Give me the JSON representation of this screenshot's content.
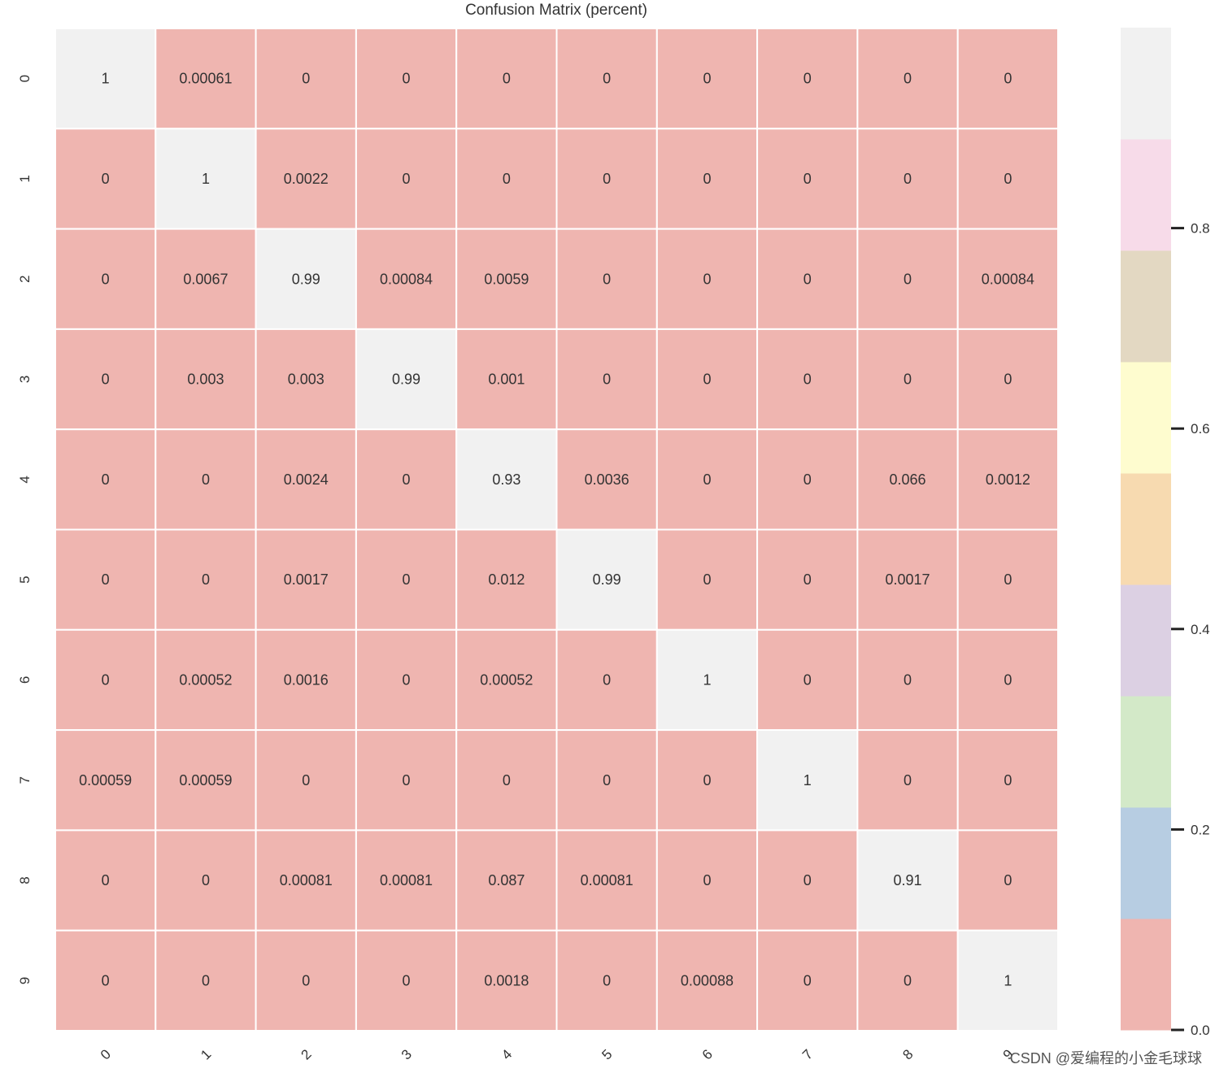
{
  "chart_data": {
    "type": "heatmap",
    "title": "Confusion Matrix (percent)",
    "xlabel": "",
    "ylabel": "",
    "x_tick_labels": [
      "0",
      "1",
      "2",
      "3",
      "4",
      "5",
      "6",
      "7",
      "8",
      "9"
    ],
    "y_tick_labels": [
      "0",
      "1",
      "2",
      "3",
      "4",
      "5",
      "6",
      "7",
      "8",
      "9"
    ],
    "annotations": [
      [
        "1",
        "0.00061",
        "0",
        "0",
        "0",
        "0",
        "0",
        "0",
        "0",
        "0"
      ],
      [
        "0",
        "1",
        "0.0022",
        "0",
        "0",
        "0",
        "0",
        "0",
        "0",
        "0"
      ],
      [
        "0",
        "0.0067",
        "0.99",
        "0.00084",
        "0.0059",
        "0",
        "0",
        "0",
        "0",
        "0.00084"
      ],
      [
        "0",
        "0.003",
        "0.003",
        "0.99",
        "0.001",
        "0",
        "0",
        "0",
        "0",
        "0"
      ],
      [
        "0",
        "0",
        "0.0024",
        "0",
        "0.93",
        "0.0036",
        "0",
        "0",
        "0.066",
        "0.0012"
      ],
      [
        "0",
        "0",
        "0.0017",
        "0",
        "0.012",
        "0.99",
        "0",
        "0",
        "0.0017",
        "0"
      ],
      [
        "0",
        "0.00052",
        "0.0016",
        "0",
        "0.00052",
        "0",
        "1",
        "0",
        "0",
        "0"
      ],
      [
        "0.00059",
        "0.00059",
        "0",
        "0",
        "0",
        "0",
        "0",
        "1",
        "0",
        "0"
      ],
      [
        "0",
        "0",
        "0.00081",
        "0.00081",
        "0.087",
        "0.00081",
        "0",
        "0",
        "0.91",
        "0"
      ],
      [
        "0",
        "0",
        "0",
        "0",
        "0.0018",
        "0",
        "0.00088",
        "0",
        "0",
        "1"
      ]
    ],
    "colormap": {
      "name": "Pastel1",
      "colors": [
        "#efb5b0",
        "#b7cde2",
        "#d3e9c8",
        "#dcd0e3",
        "#f7dab0",
        "#fefccf",
        "#e3d8c2",
        "#f7dbe9",
        "#f1f1f1"
      ]
    },
    "colorbar": {
      "range": [
        0,
        1
      ],
      "ticks": [
        {
          "value": 0.0,
          "label": "0.0"
        },
        {
          "value": 0.2,
          "label": "0.2"
        },
        {
          "value": 0.4,
          "label": "0.4"
        },
        {
          "value": 0.6,
          "label": "0.6"
        },
        {
          "value": 0.8,
          "label": "0.8"
        }
      ]
    },
    "grid": false
  },
  "watermark": "CSDN @爱编程的小金毛球球"
}
